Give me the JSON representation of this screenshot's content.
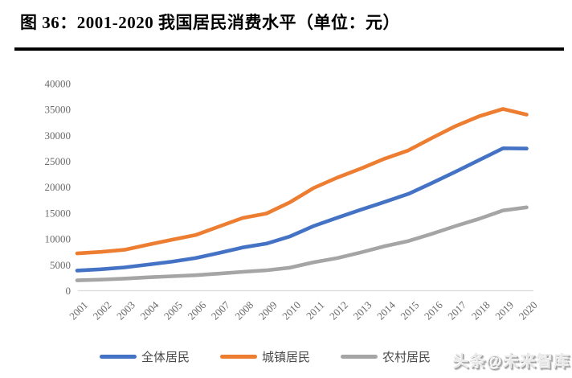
{
  "figure": {
    "title": "图 36：2001-2020 我国居民消费水平（单位：元）",
    "watermark": "头条@未来智库"
  },
  "colors": {
    "series_blue": "#4472C4",
    "series_orange": "#ED7D31",
    "series_gray": "#A5A5A5",
    "axis_line": "#D9D9D9",
    "tick_text": "#6a6a6a",
    "title_text": "#000000"
  },
  "chart_data": {
    "type": "line",
    "title": "图 36：2001-2020 我国居民消费水平（单位：元）",
    "xlabel": "",
    "ylabel": "",
    "ylim": [
      0,
      40000
    ],
    "ytick_step": 5000,
    "ytick_labels": [
      "0",
      "5000",
      "10000",
      "15000",
      "20000",
      "25000",
      "30000",
      "35000",
      "40000"
    ],
    "grid": false,
    "legend_position": "bottom",
    "categories": [
      "2001",
      "2002",
      "2003",
      "2004",
      "2005",
      "2006",
      "2007",
      "2008",
      "2009",
      "2010",
      "2011",
      "2012",
      "2013",
      "2014",
      "2015",
      "2016",
      "2017",
      "2018",
      "2019",
      "2020"
    ],
    "series": [
      {
        "name": "全体居民",
        "color": "#4472C4",
        "values": [
          3900,
          4150,
          4500,
          5050,
          5600,
          6300,
          7300,
          8350,
          9100,
          10500,
          12500,
          14100,
          15650,
          17150,
          18700,
          20800,
          23000,
          25250,
          27500,
          27450
        ]
      },
      {
        "name": "城镇居民",
        "color": "#ED7D31",
        "values": [
          7200,
          7500,
          7900,
          8900,
          9850,
          10750,
          12400,
          14050,
          14900,
          17100,
          19850,
          21850,
          23600,
          25500,
          27100,
          29500,
          31800,
          33700,
          35100,
          34000
        ]
      },
      {
        "name": "农村居民",
        "color": "#A5A5A5",
        "values": [
          2000,
          2150,
          2350,
          2600,
          2800,
          3000,
          3300,
          3650,
          3950,
          4450,
          5500,
          6300,
          7400,
          8600,
          9600,
          11000,
          12500,
          13900,
          15500,
          16100
        ]
      }
    ]
  }
}
